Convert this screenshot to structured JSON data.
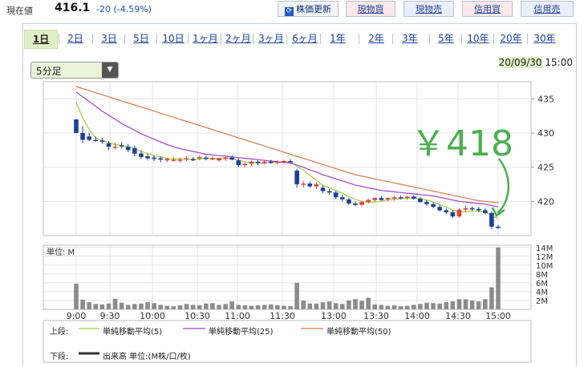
{
  "header": {
    "price_label": "現在値",
    "price_value": "416.1",
    "price_change": "-20 (-4.59%)",
    "update_button": "株価更新",
    "buttons": [
      "現物買",
      "現物売",
      "信用買",
      "信用売"
    ]
  },
  "tabs": [
    "1日",
    "2日",
    "3日",
    "5日",
    "10日",
    "1ヶ月",
    "2ヶ月",
    "3ヶ月",
    "6ヶ月",
    "1年",
    "2年",
    "3年",
    "5年",
    "10年",
    "20年",
    "30年"
  ],
  "active_tab": "1日",
  "interval": {
    "selected": "5分足"
  },
  "timestamp": {
    "date": "20/09/30",
    "time": "15:00"
  },
  "annotation": {
    "text": "￥418"
  },
  "colors": {
    "up": "#d9453a",
    "down": "#1e3f9a",
    "ma5": "#9ecf3e",
    "ma25": "#a040c8",
    "ma50": "#d77a4b",
    "volume": "#8c8c8c",
    "annotation": "#4caf50"
  },
  "chart_data": [
    {
      "type": "candlestick",
      "x_ticks": [
        "9:00",
        "9:30",
        "10:00",
        "10:30",
        "11:00",
        "11:30",
        "13:00",
        "13:30",
        "14:00",
        "14:30",
        "15:00"
      ],
      "y_ticks": [
        435,
        430,
        425,
        420
      ],
      "ylim": [
        415,
        437.5
      ],
      "ohlc": [
        [
          432.0,
          432.0,
          430.0,
          430.0
        ],
        [
          430.0,
          431.0,
          428.5,
          429.0
        ],
        [
          429.5,
          430.0,
          428.8,
          429.0
        ],
        [
          429.0,
          429.5,
          428.7,
          428.9
        ],
        [
          428.9,
          429.3,
          428.4,
          428.8
        ],
        [
          428.5,
          428.8,
          427.5,
          428.0
        ],
        [
          428.0,
          428.6,
          427.6,
          428.0
        ],
        [
          428.2,
          428.7,
          427.7,
          428.1
        ],
        [
          428.0,
          428.4,
          427.2,
          427.5
        ],
        [
          427.8,
          428.2,
          426.6,
          427.0
        ],
        [
          427.0,
          427.5,
          426.2,
          426.5
        ],
        [
          426.6,
          427.0,
          426.0,
          426.3
        ],
        [
          426.4,
          426.7,
          425.9,
          426.2
        ],
        [
          426.3,
          426.6,
          425.7,
          426.1
        ],
        [
          426.0,
          426.4,
          425.7,
          426.2
        ],
        [
          426.1,
          426.5,
          425.8,
          426.1
        ],
        [
          426.0,
          426.4,
          425.7,
          426.1
        ],
        [
          426.2,
          426.6,
          425.9,
          426.3
        ],
        [
          426.2,
          426.5,
          425.9,
          426.0
        ],
        [
          426.3,
          426.7,
          426.0,
          426.5
        ],
        [
          426.4,
          426.7,
          426.0,
          426.2
        ],
        [
          426.2,
          426.6,
          426.0,
          426.3
        ],
        [
          426.0,
          426.4,
          425.8,
          426.3
        ],
        [
          426.2,
          426.6,
          425.9,
          426.4
        ],
        [
          426.4,
          426.7,
          426.0,
          426.1
        ],
        [
          426.0,
          426.3,
          425.0,
          425.3
        ],
        [
          425.3,
          425.7,
          425.0,
          425.5
        ],
        [
          425.5,
          426.0,
          425.2,
          425.8
        ],
        [
          425.8,
          426.0,
          425.3,
          425.6
        ],
        [
          425.6,
          426.0,
          425.4,
          425.8
        ],
        [
          425.8,
          426.1,
          425.5,
          425.7
        ],
        [
          425.7,
          426.0,
          425.4,
          425.8
        ],
        [
          425.8,
          426.1,
          425.5,
          425.9
        ],
        [
          425.9,
          426.2,
          425.6,
          425.8
        ],
        [
          424.5,
          424.8,
          422.0,
          422.5
        ],
        [
          422.5,
          423.0,
          422.0,
          422.6
        ],
        [
          422.6,
          422.9,
          422.0,
          422.2
        ],
        [
          422.2,
          422.8,
          421.8,
          422.5
        ],
        [
          422.0,
          422.3,
          421.2,
          421.5
        ],
        [
          421.5,
          421.8,
          421.0,
          421.3
        ],
        [
          421.3,
          421.6,
          420.3,
          420.6
        ],
        [
          420.6,
          421.0,
          420.0,
          420.3
        ],
        [
          420.3,
          420.5,
          419.5,
          419.7
        ],
        [
          419.7,
          420.0,
          419.3,
          419.5
        ],
        [
          419.5,
          420.1,
          419.3,
          419.9
        ],
        [
          419.9,
          420.4,
          419.7,
          420.2
        ],
        [
          420.2,
          420.6,
          419.9,
          420.5
        ],
        [
          420.5,
          420.8,
          420.1,
          420.2
        ],
        [
          420.3,
          420.6,
          420.0,
          420.5
        ],
        [
          420.4,
          420.8,
          420.1,
          420.6
        ],
        [
          420.6,
          420.9,
          420.3,
          420.5
        ],
        [
          420.5,
          420.8,
          420.2,
          420.7
        ],
        [
          420.7,
          420.9,
          420.3,
          420.4
        ],
        [
          420.4,
          420.6,
          419.8,
          419.9
        ],
        [
          419.9,
          420.2,
          419.4,
          419.6
        ],
        [
          419.6,
          419.9,
          419.0,
          419.2
        ],
        [
          419.2,
          419.5,
          418.5,
          418.7
        ],
        [
          418.7,
          419.0,
          418.2,
          418.4
        ],
        [
          418.4,
          418.7,
          417.6,
          417.8
        ],
        [
          417.8,
          419.0,
          417.6,
          418.8
        ],
        [
          418.8,
          419.4,
          418.5,
          419.0
        ],
        [
          419.0,
          419.3,
          418.6,
          418.9
        ],
        [
          418.9,
          419.2,
          418.4,
          418.7
        ],
        [
          418.7,
          419.0,
          418.1,
          418.3
        ],
        [
          418.3,
          418.6,
          416.0,
          416.3
        ],
        [
          416.3,
          416.6,
          416.0,
          416.1
        ]
      ],
      "series": [
        {
          "name": "単純移動平均(5)",
          "values": [
            434.5,
            432.2,
            430.5,
            429.3,
            428.9,
            428.6,
            428.3,
            428.2,
            428.0,
            427.7,
            427.3,
            427.0,
            426.7,
            426.5,
            426.3,
            426.2,
            426.2,
            426.2,
            426.1,
            426.2,
            426.3,
            426.3,
            426.3,
            426.3,
            426.3,
            426.0,
            425.8,
            425.7,
            425.6,
            425.6,
            425.7,
            425.7,
            425.8,
            425.8,
            425.1,
            424.6,
            423.8,
            423.1,
            422.3,
            422.0,
            421.6,
            421.2,
            420.7,
            420.3,
            420.0,
            419.9,
            419.9,
            420.0,
            420.2,
            420.3,
            420.4,
            420.5,
            420.5,
            420.4,
            420.2,
            419.9,
            419.5,
            419.2,
            418.7,
            418.5,
            418.5,
            418.6,
            418.6,
            418.5,
            417.9,
            417.5
          ]
        },
        {
          "name": "単純移動平均(25)",
          "values": [
            436.0,
            435.3,
            434.6,
            433.9,
            433.2,
            432.6,
            432.0,
            431.4,
            430.9,
            430.4,
            429.9,
            429.5,
            429.1,
            428.7,
            428.3,
            428.0,
            427.7,
            427.5,
            427.3,
            427.1,
            426.9,
            426.8,
            426.7,
            426.6,
            426.5,
            426.4,
            426.3,
            426.2,
            426.1,
            426.0,
            425.9,
            425.8,
            425.7,
            425.6,
            425.3,
            425.0,
            424.6,
            424.3,
            423.9,
            423.6,
            423.3,
            423.0,
            422.7,
            422.4,
            422.2,
            422.0,
            421.8,
            421.6,
            421.5,
            421.4,
            421.3,
            421.2,
            421.1,
            421.0,
            420.9,
            420.8,
            420.6,
            420.4,
            420.2,
            420.0,
            419.9,
            419.8,
            419.7,
            419.6,
            419.4,
            419.2
          ]
        },
        {
          "name": "単純移動平均(50)",
          "values": [
            436.8,
            436.5,
            436.2,
            435.9,
            435.6,
            435.3,
            435.0,
            434.7,
            434.4,
            434.1,
            433.8,
            433.5,
            433.2,
            432.9,
            432.6,
            432.3,
            432.0,
            431.7,
            431.4,
            431.1,
            430.8,
            430.5,
            430.2,
            429.9,
            429.6,
            429.3,
            429.0,
            428.7,
            428.4,
            428.1,
            427.8,
            427.5,
            427.2,
            426.9,
            426.6,
            426.3,
            426.0,
            425.7,
            425.4,
            425.1,
            424.8,
            424.5,
            424.2,
            423.9,
            423.7,
            423.5,
            423.3,
            423.1,
            422.9,
            422.7,
            422.5,
            422.3,
            422.1,
            421.9,
            421.7,
            421.5,
            421.3,
            421.1,
            420.9,
            420.7,
            420.5,
            420.3,
            420.1,
            420.0,
            419.9,
            419.8
          ]
        }
      ]
    },
    {
      "type": "bar",
      "name": "出来高",
      "unit_label": "単位: M",
      "y_ticks": [
        "14M",
        "12M",
        "10M",
        "8M",
        "6M",
        "4M",
        "2M"
      ],
      "ylim": [
        0,
        14.5
      ],
      "values": [
        5.8,
        2.2,
        1.6,
        1.2,
        1.1,
        1.3,
        2.4,
        1.5,
        1.0,
        1.2,
        1.3,
        1.6,
        1.4,
        1.0,
        0.8,
        0.7,
        0.9,
        1.2,
        1.0,
        0.9,
        1.3,
        1.4,
        1.0,
        1.2,
        1.8,
        1.0,
        0.9,
        0.8,
        0.9,
        1.0,
        1.1,
        0.9,
        0.8,
        0.7,
        6.0,
        2.0,
        1.3,
        1.3,
        1.6,
        1.8,
        1.4,
        1.2,
        2.0,
        2.3,
        1.9,
        2.6,
        1.1,
        1.0,
        0.8,
        0.9,
        0.7,
        0.8,
        1.0,
        1.2,
        1.5,
        1.4,
        1.3,
        1.6,
        1.8,
        2.3,
        2.3,
        2.0,
        1.8,
        2.3,
        5.0,
        14.0
      ]
    }
  ],
  "legend": {
    "upper_label": "上段:",
    "lower_label": "下段:",
    "lower_item": "出来高 単位:(M株/口/枚)"
  }
}
